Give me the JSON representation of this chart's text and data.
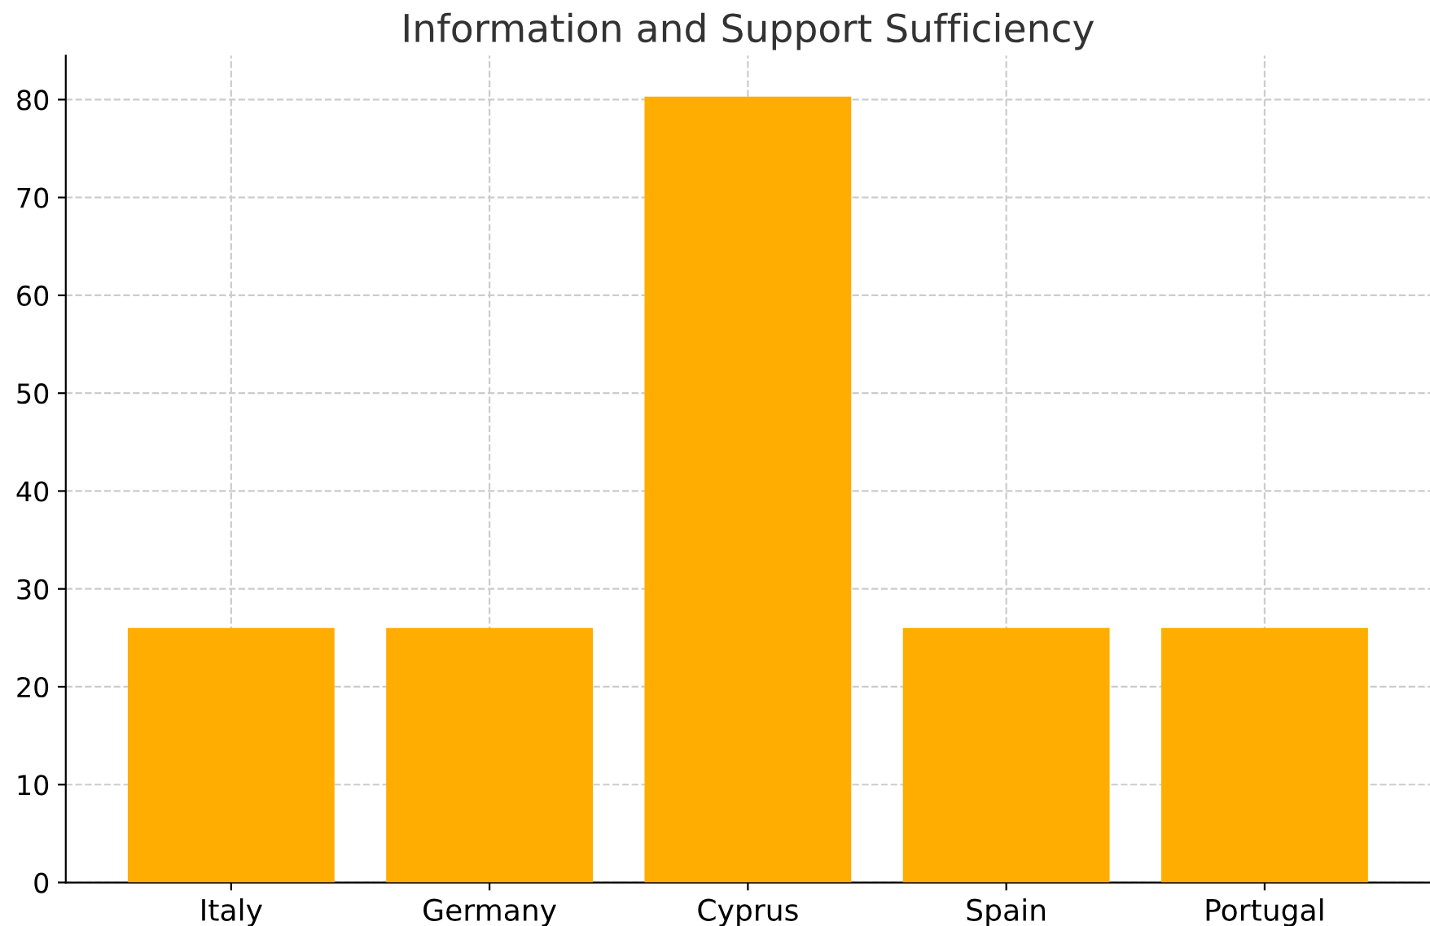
{
  "chart_data": {
    "type": "bar",
    "title": "Information and Support Sufficiency",
    "categories": [
      "Italy",
      "Germany",
      "Cyprus",
      "Spain",
      "Portugal"
    ],
    "values": [
      26,
      26,
      80.3,
      26,
      26
    ],
    "color": "#ffad00",
    "ylim": [
      0,
      84.5
    ],
    "yticks": [
      0,
      10,
      20,
      30,
      40,
      50,
      60,
      70,
      80
    ],
    "grid": true
  }
}
